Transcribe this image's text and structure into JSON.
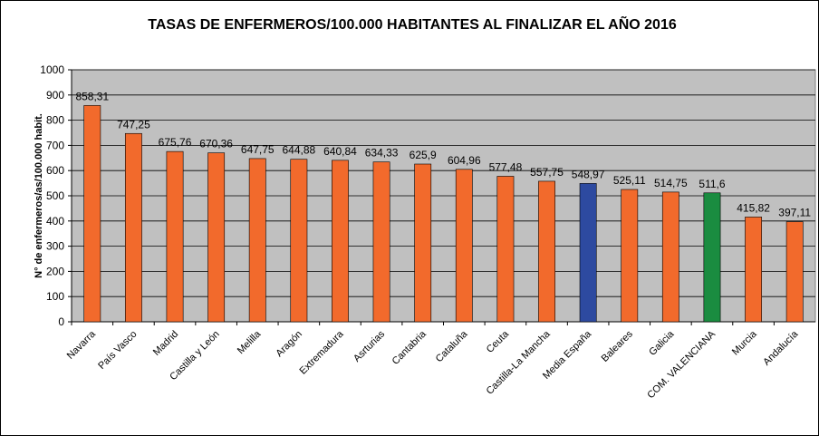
{
  "chart_data": {
    "type": "bar",
    "title": "TASAS DE ENFERMEROS/100.000 HABITANTES AL FINALIZAR EL AÑO 2016",
    "y_label": "N° de enfermeros/as/100.000 habit.",
    "categories": [
      "Navarra",
      "País Vasco",
      "Madrid",
      "Castilla y León",
      "Melilla",
      "Aragón",
      "Extremadura",
      "Asrturias",
      "Cantabria",
      "Cataluña",
      "Ceuta",
      "Castilla-La Mancha",
      "Media España",
      "Baleares",
      "Galicia",
      "COM. VALENCIANA",
      "Murcia",
      "Andalucía"
    ],
    "values": [
      858.31,
      747.25,
      675.76,
      670.36,
      647.75,
      644.88,
      640.84,
      634.33,
      625.9,
      604.96,
      577.48,
      557.75,
      548.97,
      525.11,
      514.75,
      511.6,
      415.82,
      397.11
    ],
    "value_labels": [
      "858,31",
      "747,25",
      "675,76",
      "670,36",
      "647,75",
      "644,88",
      "640,84",
      "634,33",
      "625,9",
      "604,96",
      "577,48",
      "557,75",
      "548,97",
      "525,11",
      "514,75",
      "511,6",
      "415,82",
      "397,11"
    ],
    "colors": [
      "#f26a2c",
      "#f26a2c",
      "#f26a2c",
      "#f26a2c",
      "#f26a2c",
      "#f26a2c",
      "#f26a2c",
      "#f26a2c",
      "#f26a2c",
      "#f26a2c",
      "#f26a2c",
      "#f26a2c",
      "#2d4aa0",
      "#f26a2c",
      "#f26a2c",
      "#1a8c40",
      "#f26a2c",
      "#f26a2c"
    ],
    "ylim": [
      0,
      1000
    ],
    "yticks": [
      0,
      100,
      200,
      300,
      400,
      500,
      600,
      700,
      800,
      900,
      1000
    ],
    "grid": true
  }
}
